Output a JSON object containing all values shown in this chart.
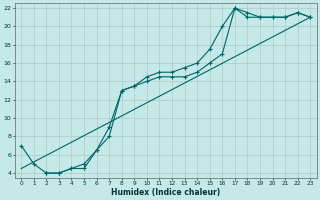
{
  "xlabel": "Humidex (Indice chaleur)",
  "background_color": "#c5e8e8",
  "grid_color": "#b0c8c8",
  "line_color": "#006666",
  "xlim": [
    -0.5,
    23.5
  ],
  "ylim": [
    3.5,
    22.5
  ],
  "xticks": [
    0,
    1,
    2,
    3,
    4,
    5,
    6,
    7,
    8,
    9,
    10,
    11,
    12,
    13,
    14,
    15,
    16,
    17,
    18,
    19,
    20,
    21,
    22,
    23
  ],
  "yticks": [
    4,
    6,
    8,
    10,
    12,
    14,
    16,
    18,
    20,
    22
  ],
  "line1_x": [
    0,
    1,
    2,
    3,
    4,
    5,
    6,
    7,
    8,
    9,
    10,
    11,
    12,
    13,
    14,
    15,
    16,
    17,
    18,
    19,
    20,
    21,
    22,
    23
  ],
  "line1_y": [
    7,
    5,
    4,
    4,
    4.5,
    5,
    6.5,
    9,
    13,
    13.5,
    14,
    14.5,
    14.5,
    14.5,
    15,
    16,
    17,
    22,
    21.5,
    21,
    21,
    21,
    21.5,
    21
  ],
  "line2_x": [
    2,
    3,
    4,
    5,
    6,
    7,
    8,
    9,
    10,
    11,
    12,
    13,
    14,
    15,
    16,
    17,
    18,
    19,
    20,
    21,
    22,
    23
  ],
  "line2_y": [
    4,
    4,
    4.5,
    4.5,
    6.5,
    8,
    13,
    13.5,
    14.5,
    15,
    15,
    15.5,
    16,
    17.5,
    20,
    22,
    21,
    21,
    21,
    21,
    21.5,
    21
  ],
  "line3_x": [
    0,
    23
  ],
  "line3_y": [
    4.5,
    21
  ],
  "marker_style": "+",
  "marker_size": 3,
  "line_width": 0.8,
  "xlabel_fontsize": 5.5,
  "tick_fontsize": 4.5
}
